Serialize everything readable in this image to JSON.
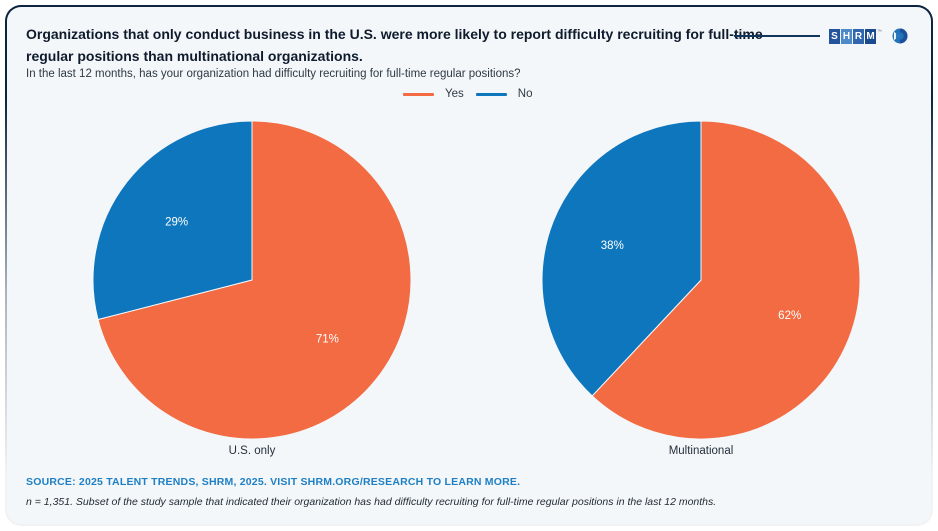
{
  "header": {
    "title": "Organizations that only conduct business in the U.S. were more likely to report difficulty recruiting for full-time regular positions than multinational organizations.",
    "subtitle": "In the last 12 months, has your organization had difficulty recruiting for full-time regular positions?",
    "logo": {
      "letters": [
        {
          "char": "S",
          "bg": "#24549c"
        },
        {
          "char": "H",
          "bg": "#4e8ac9"
        },
        {
          "char": "R",
          "bg": "#2f66ae"
        },
        {
          "char": "M",
          "bg": "#1c4a8f"
        }
      ],
      "tm": "™"
    }
  },
  "legend": [
    {
      "label": "Yes",
      "color": "#f26b42"
    },
    {
      "label": "No",
      "color": "#0e76bc"
    }
  ],
  "chart_data": {
    "type": "pie",
    "title": "Organizations that only conduct business in the U.S. were more likely to report difficulty recruiting for full-time regular positions than multinational organizations.",
    "question": "In the last 12 months, has your organization had difficulty recruiting for full-time regular positions?",
    "series_labels": [
      "Yes",
      "No"
    ],
    "colors": {
      "Yes": "#f26b42",
      "No": "#0e76bc"
    },
    "start_angle": "12-oclock",
    "direction": "clockwise",
    "legend_position": "top-center",
    "pies": [
      {
        "category": "U.S. only",
        "values": [
          {
            "label": "Yes",
            "pct": 71,
            "display": "71%"
          },
          {
            "label": "No",
            "pct": 29,
            "display": "29%"
          }
        ]
      },
      {
        "category": "Multinational",
        "values": [
          {
            "label": "Yes",
            "pct": 62,
            "display": "62%"
          },
          {
            "label": "No",
            "pct": 38,
            "display": "38%"
          }
        ]
      }
    ]
  },
  "footer": {
    "source": "SOURCE: 2025 TALENT TRENDS, SHRM, 2025. VISIT SHRM.ORG/RESEARCH TO LEARN MORE.",
    "note": "n = 1,351. Subset of the study sample that indicated their organization has had difficulty recruiting for full-time regular positions in the last 12 months."
  }
}
